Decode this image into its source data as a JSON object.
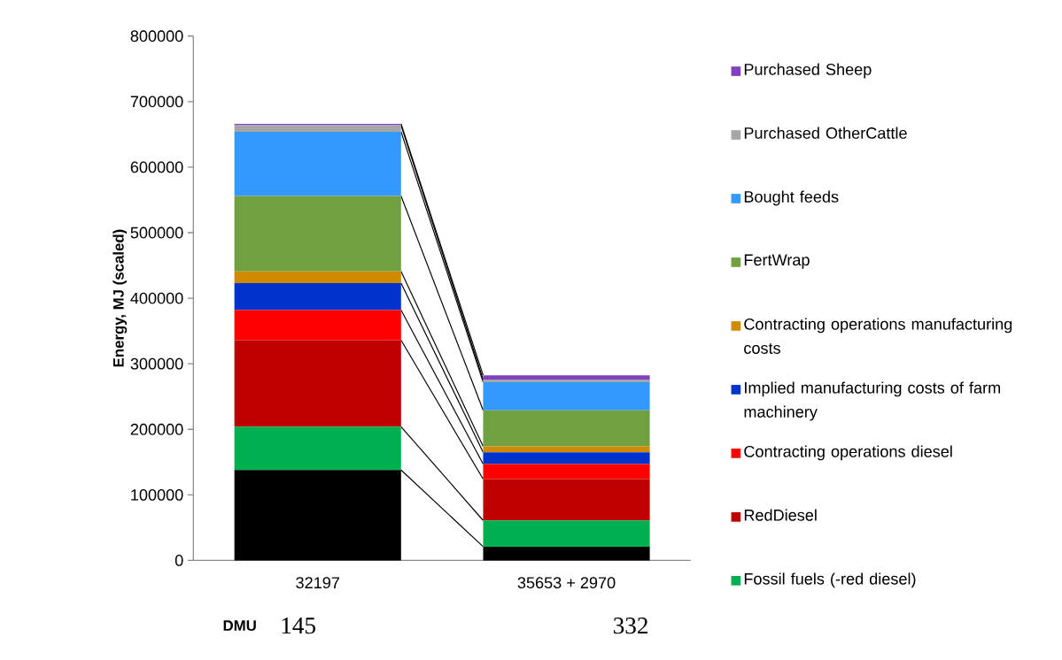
{
  "chart_data": {
    "type": "bar",
    "stacked": true,
    "ylabel": "Energy, MJ (scaled)",
    "categories": [
      "32197",
      "35653 + 2970"
    ],
    "series": [
      {
        "color": "#000000",
        "values": [
          138000,
          21000
        ]
      },
      {
        "name": "Fossil fuels (-red diesel)",
        "color": "#00b050",
        "values": [
          66000,
          40000
        ]
      },
      {
        "name": "RedDiesel",
        "color": "#c00000",
        "values": [
          132000,
          63000
        ]
      },
      {
        "name": "Contracting operations diesel",
        "color": "#ff0000",
        "values": [
          46000,
          23000
        ]
      },
      {
        "name": "Implied manufacturing costs of farm machinery",
        "color": "#0033cc",
        "values": [
          41000,
          18000
        ]
      },
      {
        "name": "Contracting operations manufacturing costs",
        "color": "#d08a00",
        "values": [
          18000,
          9000
        ]
      },
      {
        "name": "FertWrap",
        "color": "#70a040",
        "values": [
          115000,
          55000
        ]
      },
      {
        "name": "Bought feeds",
        "color": "#3399ff",
        "values": [
          98000,
          43000
        ]
      },
      {
        "name": "Purchased OtherCattle",
        "color": "#a6a6a6",
        "values": [
          10000,
          4000
        ]
      },
      {
        "name": "Purchased Sheep",
        "color": "#8040c0",
        "values": [
          2000,
          6500
        ]
      }
    ],
    "ylim": [
      0,
      800000
    ],
    "yticks": [
      0,
      100000,
      200000,
      300000,
      400000,
      500000,
      600000,
      700000,
      800000
    ],
    "legend": "right",
    "annotations": [
      "DMU",
      "145",
      "332"
    ]
  }
}
